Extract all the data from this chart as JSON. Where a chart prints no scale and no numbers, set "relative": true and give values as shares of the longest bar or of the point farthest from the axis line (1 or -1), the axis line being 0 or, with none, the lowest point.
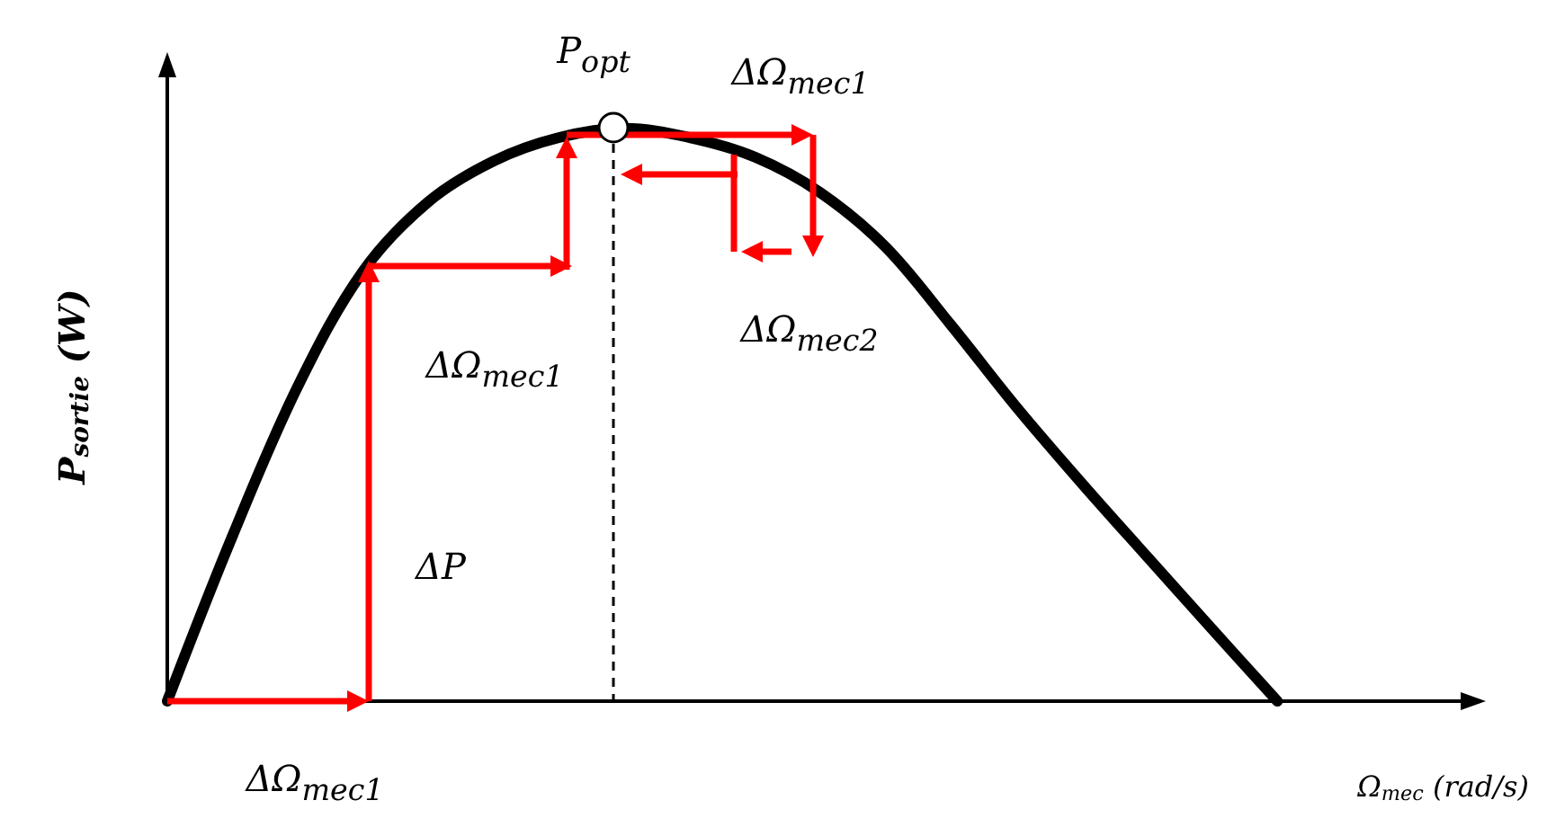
{
  "chart_data": {
    "type": "line",
    "relative": true,
    "xlabel": "Ω$_{mec}$ (rad/s)",
    "ylabel": "P$_{sortie}$ (W)",
    "marker": "none",
    "line_style": "solid",
    "categories": [
      null,
      null,
      null,
      null,
      null,
      null,
      null,
      null,
      null,
      null,
      null,
      null,
      null,
      null,
      null,
      null,
      null,
      null,
      null,
      null,
      null
    ],
    "series": [
      {
        "color": "#000000",
        "values": [
          0,
          0.289,
          0.55,
          0.751,
          0.872,
          0.943,
          0.984,
          1,
          0.984,
          0.95,
          0.888,
          0.793,
          0.657,
          0.514,
          0.381,
          0.253,
          0.126,
          0,
          null,
          null,
          null
        ]
      }
    ],
    "annotations": [
      "P$_{opt}$",
      "ΔΩ$_{mec1}$",
      "ΔΩ$_{mec1}$",
      "ΔΩ$_{mec2}$",
      "ΔP",
      "ΔΩ$_{mec1}$"
    ]
  }
}
